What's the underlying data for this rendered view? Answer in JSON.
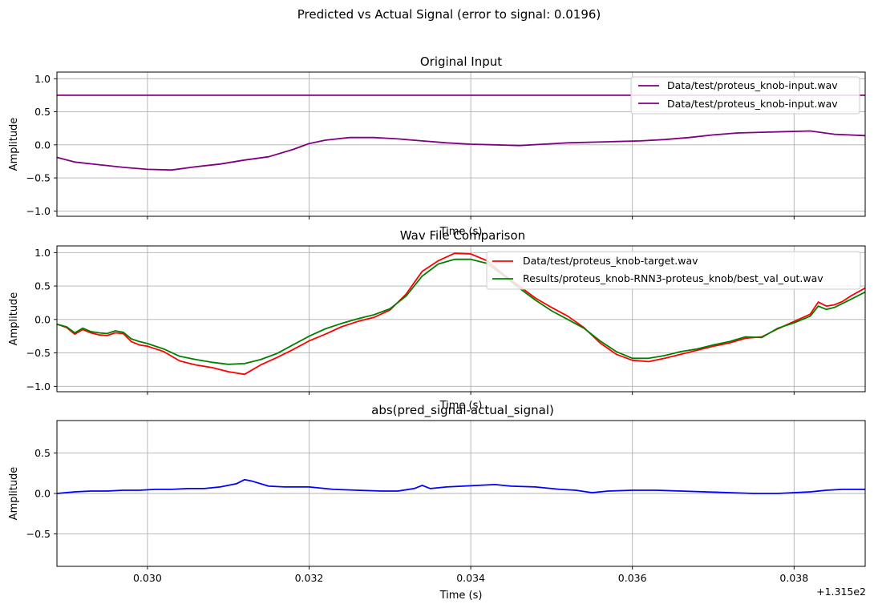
{
  "suptitle": "Predicted vs Actual Signal (error to signal: 0.0196)",
  "x_offset_label": "+1.315e2",
  "colors": {
    "input": "#800080",
    "target": "#ff0000",
    "pred": "#008000",
    "error": "#0000ff",
    "grid": "#b0b0b0"
  },
  "chart_data": [
    {
      "type": "line",
      "title": "Original Input",
      "xlabel": "Time (s)",
      "ylabel": "Amplitude",
      "xlim": [
        0.02888,
        0.03888
      ],
      "ylim": [
        -1.08,
        1.1
      ],
      "xticks": [
        0.03,
        0.032,
        0.034,
        0.036,
        0.038
      ],
      "yticks": [
        -1.0,
        -0.5,
        0.0,
        0.5,
        1.0
      ],
      "ytick_labels": [
        "−1.0",
        "−0.5",
        "0.0",
        "0.5",
        "1.0"
      ],
      "grid": true,
      "legend": "top-right",
      "series": [
        {
          "name": "Data/test/proteus_knob-input.wav",
          "color": "#800080",
          "x": [
            0.02888,
            0.03888
          ],
          "y": [
            0.75,
            0.75
          ]
        },
        {
          "name": "Data/test/proteus_knob-input.wav",
          "color": "#800080",
          "x": [
            0.02888,
            0.0291,
            0.0294,
            0.0297,
            0.03,
            0.0303,
            0.0306,
            0.0309,
            0.0312,
            0.0315,
            0.0318,
            0.032,
            0.0322,
            0.0325,
            0.0328,
            0.0331,
            0.0334,
            0.0337,
            0.034,
            0.0343,
            0.0346,
            0.0349,
            0.0352,
            0.0355,
            0.0358,
            0.0361,
            0.0364,
            0.0367,
            0.037,
            0.0373,
            0.0376,
            0.0379,
            0.0382,
            0.0385,
            0.03888
          ],
          "y": [
            -0.19,
            -0.26,
            -0.3,
            -0.34,
            -0.37,
            -0.38,
            -0.33,
            -0.29,
            -0.23,
            -0.18,
            -0.07,
            0.02,
            0.07,
            0.11,
            0.11,
            0.09,
            0.06,
            0.03,
            0.01,
            0.0,
            -0.01,
            0.01,
            0.03,
            0.04,
            0.05,
            0.06,
            0.08,
            0.11,
            0.15,
            0.18,
            0.19,
            0.2,
            0.21,
            0.16,
            0.14
          ]
        }
      ]
    },
    {
      "type": "line",
      "title": "Wav File Comparison",
      "xlabel": "Time (s)",
      "ylabel": "Amplitude",
      "xlim": [
        0.02888,
        0.03888
      ],
      "ylim": [
        -1.08,
        1.1
      ],
      "xticks": [
        0.03,
        0.032,
        0.034,
        0.036,
        0.038
      ],
      "yticks": [
        -1.0,
        -0.5,
        0.0,
        0.5,
        1.0
      ],
      "ytick_labels": [
        "−1.0",
        "−0.5",
        "0.0",
        "0.5",
        "1.0"
      ],
      "grid": true,
      "legend": "top-right",
      "series": [
        {
          "name": "Data/test/proteus_knob-target.wav",
          "color": "#ff0000",
          "x": [
            0.02888,
            0.029,
            0.0291,
            0.0292,
            0.0293,
            0.0294,
            0.0295,
            0.0296,
            0.0297,
            0.0298,
            0.0299,
            0.03,
            0.0302,
            0.0304,
            0.0306,
            0.0308,
            0.031,
            0.0312,
            0.0314,
            0.0316,
            0.0318,
            0.032,
            0.0322,
            0.0324,
            0.0326,
            0.0328,
            0.033,
            0.0332,
            0.0334,
            0.0336,
            0.0338,
            0.034,
            0.0342,
            0.0344,
            0.0346,
            0.0348,
            0.035,
            0.0352,
            0.0354,
            0.0356,
            0.0358,
            0.036,
            0.0362,
            0.0364,
            0.0366,
            0.0368,
            0.037,
            0.0372,
            0.0374,
            0.0376,
            0.0378,
            0.038,
            0.0382,
            0.0383,
            0.0384,
            0.0385,
            0.0386,
            0.0387,
            0.03888
          ],
          "y": [
            -0.07,
            -0.12,
            -0.22,
            -0.15,
            -0.2,
            -0.23,
            -0.24,
            -0.2,
            -0.21,
            -0.33,
            -0.38,
            -0.4,
            -0.48,
            -0.62,
            -0.68,
            -0.72,
            -0.78,
            -0.82,
            -0.68,
            -0.57,
            -0.45,
            -0.32,
            -0.22,
            -0.11,
            -0.03,
            0.03,
            0.14,
            0.38,
            0.72,
            0.88,
            0.99,
            0.98,
            0.88,
            0.68,
            0.5,
            0.32,
            0.18,
            0.05,
            -0.12,
            -0.35,
            -0.52,
            -0.61,
            -0.63,
            -0.58,
            -0.52,
            -0.46,
            -0.4,
            -0.35,
            -0.28,
            -0.26,
            -0.14,
            -0.03,
            0.08,
            0.26,
            0.2,
            0.22,
            0.27,
            0.35,
            0.47
          ]
        },
        {
          "name": "Results/proteus_knob-RNN3-proteus_knob/best_val_out.wav",
          "color": "#008000",
          "x": [
            0.02888,
            0.029,
            0.0291,
            0.0292,
            0.0293,
            0.0294,
            0.0295,
            0.0296,
            0.0297,
            0.0298,
            0.0299,
            0.03,
            0.0302,
            0.0304,
            0.0306,
            0.0308,
            0.031,
            0.0312,
            0.0314,
            0.0316,
            0.0318,
            0.032,
            0.0322,
            0.0324,
            0.0326,
            0.0328,
            0.033,
            0.0332,
            0.0334,
            0.0336,
            0.0338,
            0.034,
            0.0342,
            0.0344,
            0.0346,
            0.0348,
            0.035,
            0.0352,
            0.0354,
            0.0356,
            0.0358,
            0.036,
            0.0362,
            0.0364,
            0.0366,
            0.0368,
            0.037,
            0.0372,
            0.0374,
            0.0376,
            0.0378,
            0.038,
            0.0382,
            0.0383,
            0.0384,
            0.0385,
            0.0386,
            0.0387,
            0.03888
          ],
          "y": [
            -0.07,
            -0.11,
            -0.2,
            -0.13,
            -0.18,
            -0.2,
            -0.21,
            -0.17,
            -0.19,
            -0.29,
            -0.33,
            -0.36,
            -0.44,
            -0.55,
            -0.6,
            -0.64,
            -0.67,
            -0.66,
            -0.6,
            -0.51,
            -0.38,
            -0.25,
            -0.14,
            -0.06,
            0.01,
            0.07,
            0.16,
            0.35,
            0.65,
            0.83,
            0.9,
            0.9,
            0.84,
            0.66,
            0.47,
            0.29,
            0.13,
            0.0,
            -0.13,
            -0.32,
            -0.48,
            -0.58,
            -0.58,
            -0.54,
            -0.48,
            -0.44,
            -0.38,
            -0.33,
            -0.26,
            -0.27,
            -0.13,
            -0.05,
            0.05,
            0.2,
            0.15,
            0.18,
            0.24,
            0.3,
            0.41
          ]
        }
      ]
    },
    {
      "type": "line",
      "title": "abs(pred_signal-actual_signal)",
      "xlabel": "Time (s)",
      "ylabel": "Amplitude",
      "xlim": [
        0.02888,
        0.03888
      ],
      "ylim": [
        -0.9,
        0.9
      ],
      "xticks": [
        0.03,
        0.032,
        0.034,
        0.036,
        0.038
      ],
      "xtick_labels": [
        "0.030",
        "0.032",
        "0.034",
        "0.036",
        "0.038"
      ],
      "yticks": [
        -0.5,
        0.0,
        0.5
      ],
      "ytick_labels": [
        "−0.5",
        "0.0",
        "0.5"
      ],
      "grid": true,
      "series": [
        {
          "color": "#0000ff",
          "x": [
            0.02888,
            0.0291,
            0.0293,
            0.0295,
            0.0297,
            0.0299,
            0.0301,
            0.0303,
            0.0305,
            0.0307,
            0.0309,
            0.0311,
            0.0312,
            0.0313,
            0.0315,
            0.0317,
            0.032,
            0.0323,
            0.0326,
            0.0329,
            0.0331,
            0.0333,
            0.0334,
            0.0335,
            0.0337,
            0.0339,
            0.0341,
            0.0343,
            0.0345,
            0.0348,
            0.0351,
            0.0353,
            0.0355,
            0.0357,
            0.036,
            0.0363,
            0.0366,
            0.0369,
            0.0372,
            0.0375,
            0.0378,
            0.038,
            0.0382,
            0.0384,
            0.0386,
            0.03888
          ],
          "y": [
            0.0,
            0.02,
            0.03,
            0.03,
            0.04,
            0.04,
            0.05,
            0.05,
            0.06,
            0.06,
            0.08,
            0.12,
            0.17,
            0.15,
            0.09,
            0.08,
            0.08,
            0.05,
            0.04,
            0.03,
            0.03,
            0.06,
            0.1,
            0.06,
            0.08,
            0.09,
            0.1,
            0.11,
            0.09,
            0.08,
            0.05,
            0.04,
            0.01,
            0.03,
            0.04,
            0.04,
            0.03,
            0.02,
            0.01,
            0.0,
            0.0,
            0.01,
            0.02,
            0.04,
            0.05,
            0.05
          ]
        }
      ]
    }
  ],
  "legends": [
    [
      "Data/test/proteus_knob-input.wav",
      "Data/test/proteus_knob-input.wav"
    ],
    [
      "Data/test/proteus_knob-target.wav",
      "Results/proteus_knob-RNN3-proteus_knob/best_val_out.wav"
    ]
  ]
}
